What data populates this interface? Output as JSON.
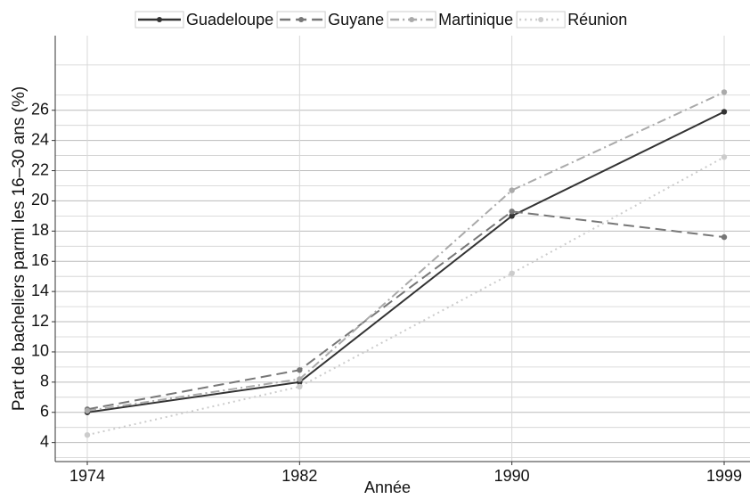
{
  "chart_data": {
    "type": "line",
    "categories": [
      "1974",
      "1982",
      "1990",
      "1999"
    ],
    "series": [
      {
        "name": "Guadeloupe",
        "color": "#333333",
        "dash": "none",
        "values": [
          6.0,
          8.0,
          19.0,
          25.9
        ]
      },
      {
        "name": "Guyane",
        "color": "#777777",
        "dash": "12,6",
        "values": [
          6.2,
          8.8,
          19.3,
          17.6
        ]
      },
      {
        "name": "Martinique",
        "color": "#aaaaaa",
        "dash": "10,4,2,4",
        "values": [
          6.1,
          8.2,
          20.7,
          27.2
        ]
      },
      {
        "name": "Réunion",
        "color": "#cccccc",
        "dash": "2,4",
        "values": [
          4.5,
          7.7,
          15.2,
          22.9
        ]
      }
    ],
    "xlabel": "Année",
    "ylabel": "Part de bacheliers parmi les 16–30 ans (%)",
    "ylim": [
      2.74,
      30.94
    ],
    "yticks": [
      4,
      6,
      8,
      10,
      12,
      14,
      16,
      18,
      20,
      22,
      24,
      26
    ],
    "grid": true,
    "legend": "top"
  }
}
